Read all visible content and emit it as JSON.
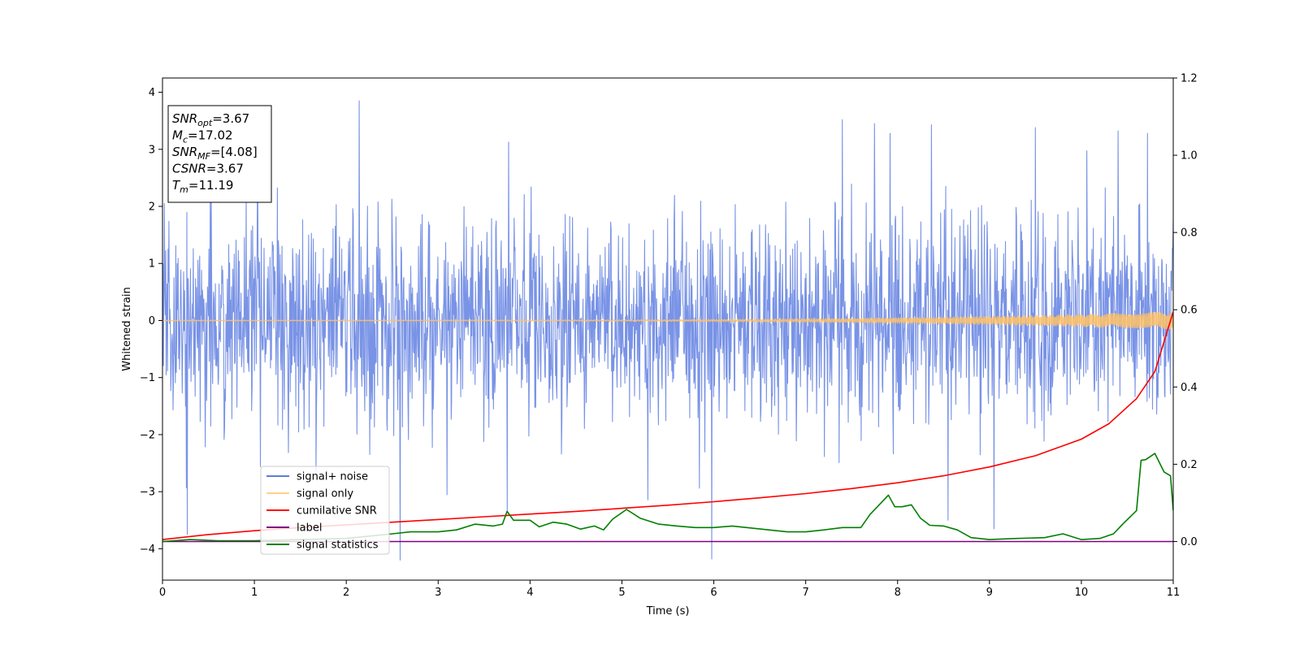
{
  "chart_data": {
    "type": "line",
    "xlabel": "Time (s)",
    "ylabel": "Whitened strain",
    "xlim": [
      0,
      11
    ],
    "ylim": [
      -4.55,
      4.25
    ],
    "y2lim": [
      -0.1,
      1.2
    ],
    "x_ticks": [
      "0",
      "1",
      "2",
      "3",
      "4",
      "5",
      "6",
      "7",
      "8",
      "9",
      "10",
      "11"
    ],
    "y_ticks": [
      "4",
      "3",
      "2",
      "1",
      "0",
      "−1",
      "−2",
      "−3",
      "−4"
    ],
    "y2_ticks": [
      "1.2",
      "1.0",
      "0.8",
      "0.6",
      "0.4",
      "0.2",
      "0.0"
    ],
    "noise_seed": 7,
    "noise_samples": 2200,
    "noise_sigma": 0.9,
    "noise_spikes": [
      {
        "x": 0.27,
        "y": -3.75
      },
      {
        "x": 2.14,
        "y": 3.85
      },
      {
        "x": 5.98,
        "y": -4.18
      },
      {
        "x": 7.4,
        "y": 3.52
      },
      {
        "x": 7.75,
        "y": 3.45
      },
      {
        "x": 8.37,
        "y": 3.43
      },
      {
        "x": 9.5,
        "y": 3.38
      },
      {
        "x": 10.4,
        "y": 3.32
      },
      {
        "x": 10.72,
        "y": 3.28
      },
      {
        "x": 3.75,
        "y": -3.35
      },
      {
        "x": 8.55,
        "y": -3.5
      },
      {
        "x": 9.05,
        "y": -3.65
      }
    ],
    "series": [
      {
        "name": "signal+ noise",
        "color": "#5b7be0",
        "axis": "left",
        "kind": "noise"
      },
      {
        "name": "signal only",
        "color": "#ffc266",
        "axis": "left",
        "kind": "chirp",
        "amp_end": 0.15
      },
      {
        "name": "cumilative SNR",
        "color": "#ff0000",
        "axis": "right",
        "x": [
          0,
          0.5,
          1,
          1.5,
          2,
          2.5,
          3,
          3.5,
          4,
          4.5,
          5,
          5.5,
          6,
          6.5,
          7,
          7.5,
          8,
          8.5,
          9,
          9.5,
          10,
          10.3,
          10.6,
          10.8,
          11
        ],
        "values": [
          0.005,
          0.018,
          0.028,
          0.036,
          0.043,
          0.05,
          0.057,
          0.064,
          0.071,
          0.078,
          0.086,
          0.094,
          0.103,
          0.113,
          0.124,
          0.137,
          0.152,
          0.17,
          0.193,
          0.222,
          0.265,
          0.305,
          0.37,
          0.44,
          0.595
        ]
      },
      {
        "name": "label",
        "color": "#800080",
        "axis": "right",
        "x": [
          0,
          11
        ],
        "values": [
          0,
          0
        ]
      },
      {
        "name": "signal statistics",
        "color": "#008000",
        "axis": "right",
        "x": [
          0,
          0.3,
          0.6,
          1.0,
          1.5,
          2.0,
          2.3,
          2.5,
          2.7,
          3.0,
          3.2,
          3.4,
          3.6,
          3.7,
          3.75,
          3.82,
          4.0,
          4.1,
          4.25,
          4.4,
          4.55,
          4.7,
          4.8,
          4.9,
          5.05,
          5.2,
          5.4,
          5.6,
          5.8,
          6.0,
          6.2,
          6.4,
          6.6,
          6.8,
          7.0,
          7.2,
          7.4,
          7.6,
          7.7,
          7.8,
          7.9,
          7.97,
          8.05,
          8.15,
          8.25,
          8.35,
          8.5,
          8.65,
          8.8,
          9.0,
          9.3,
          9.6,
          9.8,
          10.0,
          10.2,
          10.35,
          10.45,
          10.6,
          10.65,
          10.7,
          10.8,
          10.9,
          10.97,
          11.0
        ],
        "values": [
          0.0,
          0.005,
          0.002,
          0.002,
          0.005,
          0.008,
          0.015,
          0.02,
          0.025,
          0.025,
          0.03,
          0.045,
          0.04,
          0.045,
          0.078,
          0.055,
          0.055,
          0.038,
          0.05,
          0.045,
          0.032,
          0.04,
          0.03,
          0.058,
          0.083,
          0.06,
          0.045,
          0.04,
          0.036,
          0.036,
          0.04,
          0.035,
          0.03,
          0.025,
          0.025,
          0.03,
          0.036,
          0.036,
          0.07,
          0.095,
          0.12,
          0.09,
          0.09,
          0.095,
          0.06,
          0.042,
          0.04,
          0.03,
          0.01,
          0.005,
          0.008,
          0.01,
          0.02,
          0.005,
          0.008,
          0.02,
          0.045,
          0.08,
          0.21,
          0.212,
          0.228,
          0.18,
          0.17,
          0.08
        ]
      }
    ],
    "legend_position": "lower-left",
    "annotation": [
      {
        "base": "SNR",
        "sub": "opt",
        "value": "=3.67"
      },
      {
        "base": "M",
        "sub": "c",
        "value": "=17.02"
      },
      {
        "base": "SNR",
        "sub": "MF",
        "value": "=[4.08]"
      },
      {
        "base": "CSNR",
        "sub": "",
        "value": "=3.67"
      },
      {
        "base": "T",
        "sub": "m",
        "value": "=11.19"
      }
    ]
  }
}
